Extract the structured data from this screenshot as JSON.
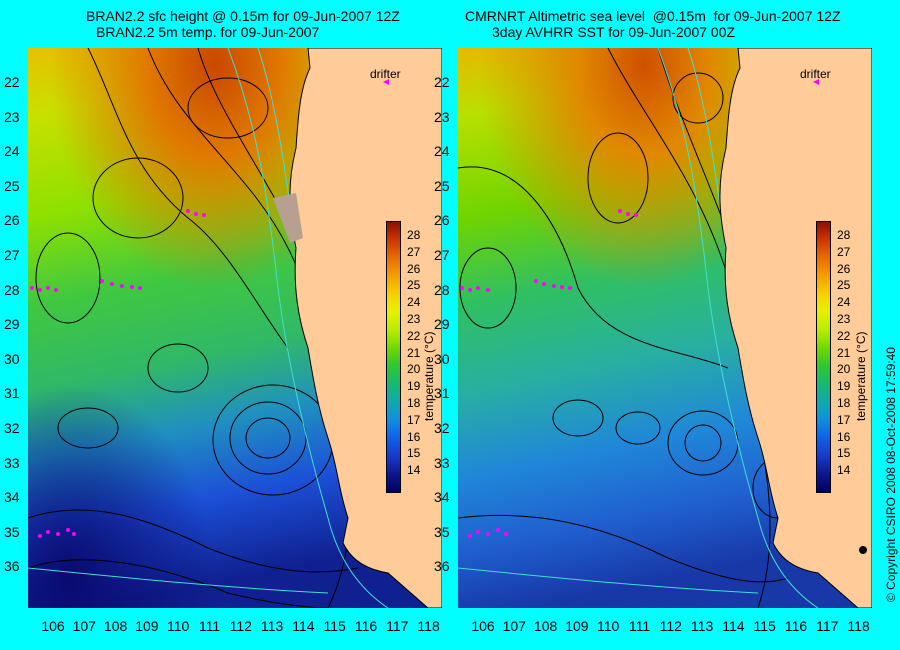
{
  "left_panel": {
    "title_line1": "BRAN2.2 sfc height @ 0.15m for 09-Jun-2007 12Z",
    "title_line2": "BRAN2.2 5m temp. for 09-Jun-2007",
    "drifter_label": "drifter"
  },
  "right_panel": {
    "title_line1": "CMRNRT Altimetric sea level  @0.15m  for 09-Jun-2007 12Z",
    "title_line2": "3day AVHRR SST for 09-Jun-2007 00Z",
    "drifter_label": "drifter"
  },
  "latitude_labels": [
    "22",
    "23",
    "24",
    "25",
    "26",
    "27",
    "28",
    "29",
    "30",
    "31",
    "32",
    "33",
    "34",
    "35",
    "36"
  ],
  "longitude_labels": [
    "106",
    "107",
    "108",
    "109",
    "110",
    "111",
    "112",
    "113",
    "114",
    "115",
    "116",
    "117",
    "118"
  ],
  "colorbar": {
    "ticks": [
      "28",
      "27",
      "26",
      "25",
      "24",
      "23",
      "22",
      "21",
      "20",
      "19",
      "18",
      "17",
      "16",
      "15",
      "14"
    ],
    "label": "temperature (°C)"
  },
  "copyright": "© Copyright CSIRO 2008    08-Oct-2008 17:59:40",
  "colors": {
    "background": "#00ffff",
    "land": "#ffcc99",
    "drifter": "#ff00ff",
    "contour": "#000000",
    "isobath": "#40e0d0"
  }
}
